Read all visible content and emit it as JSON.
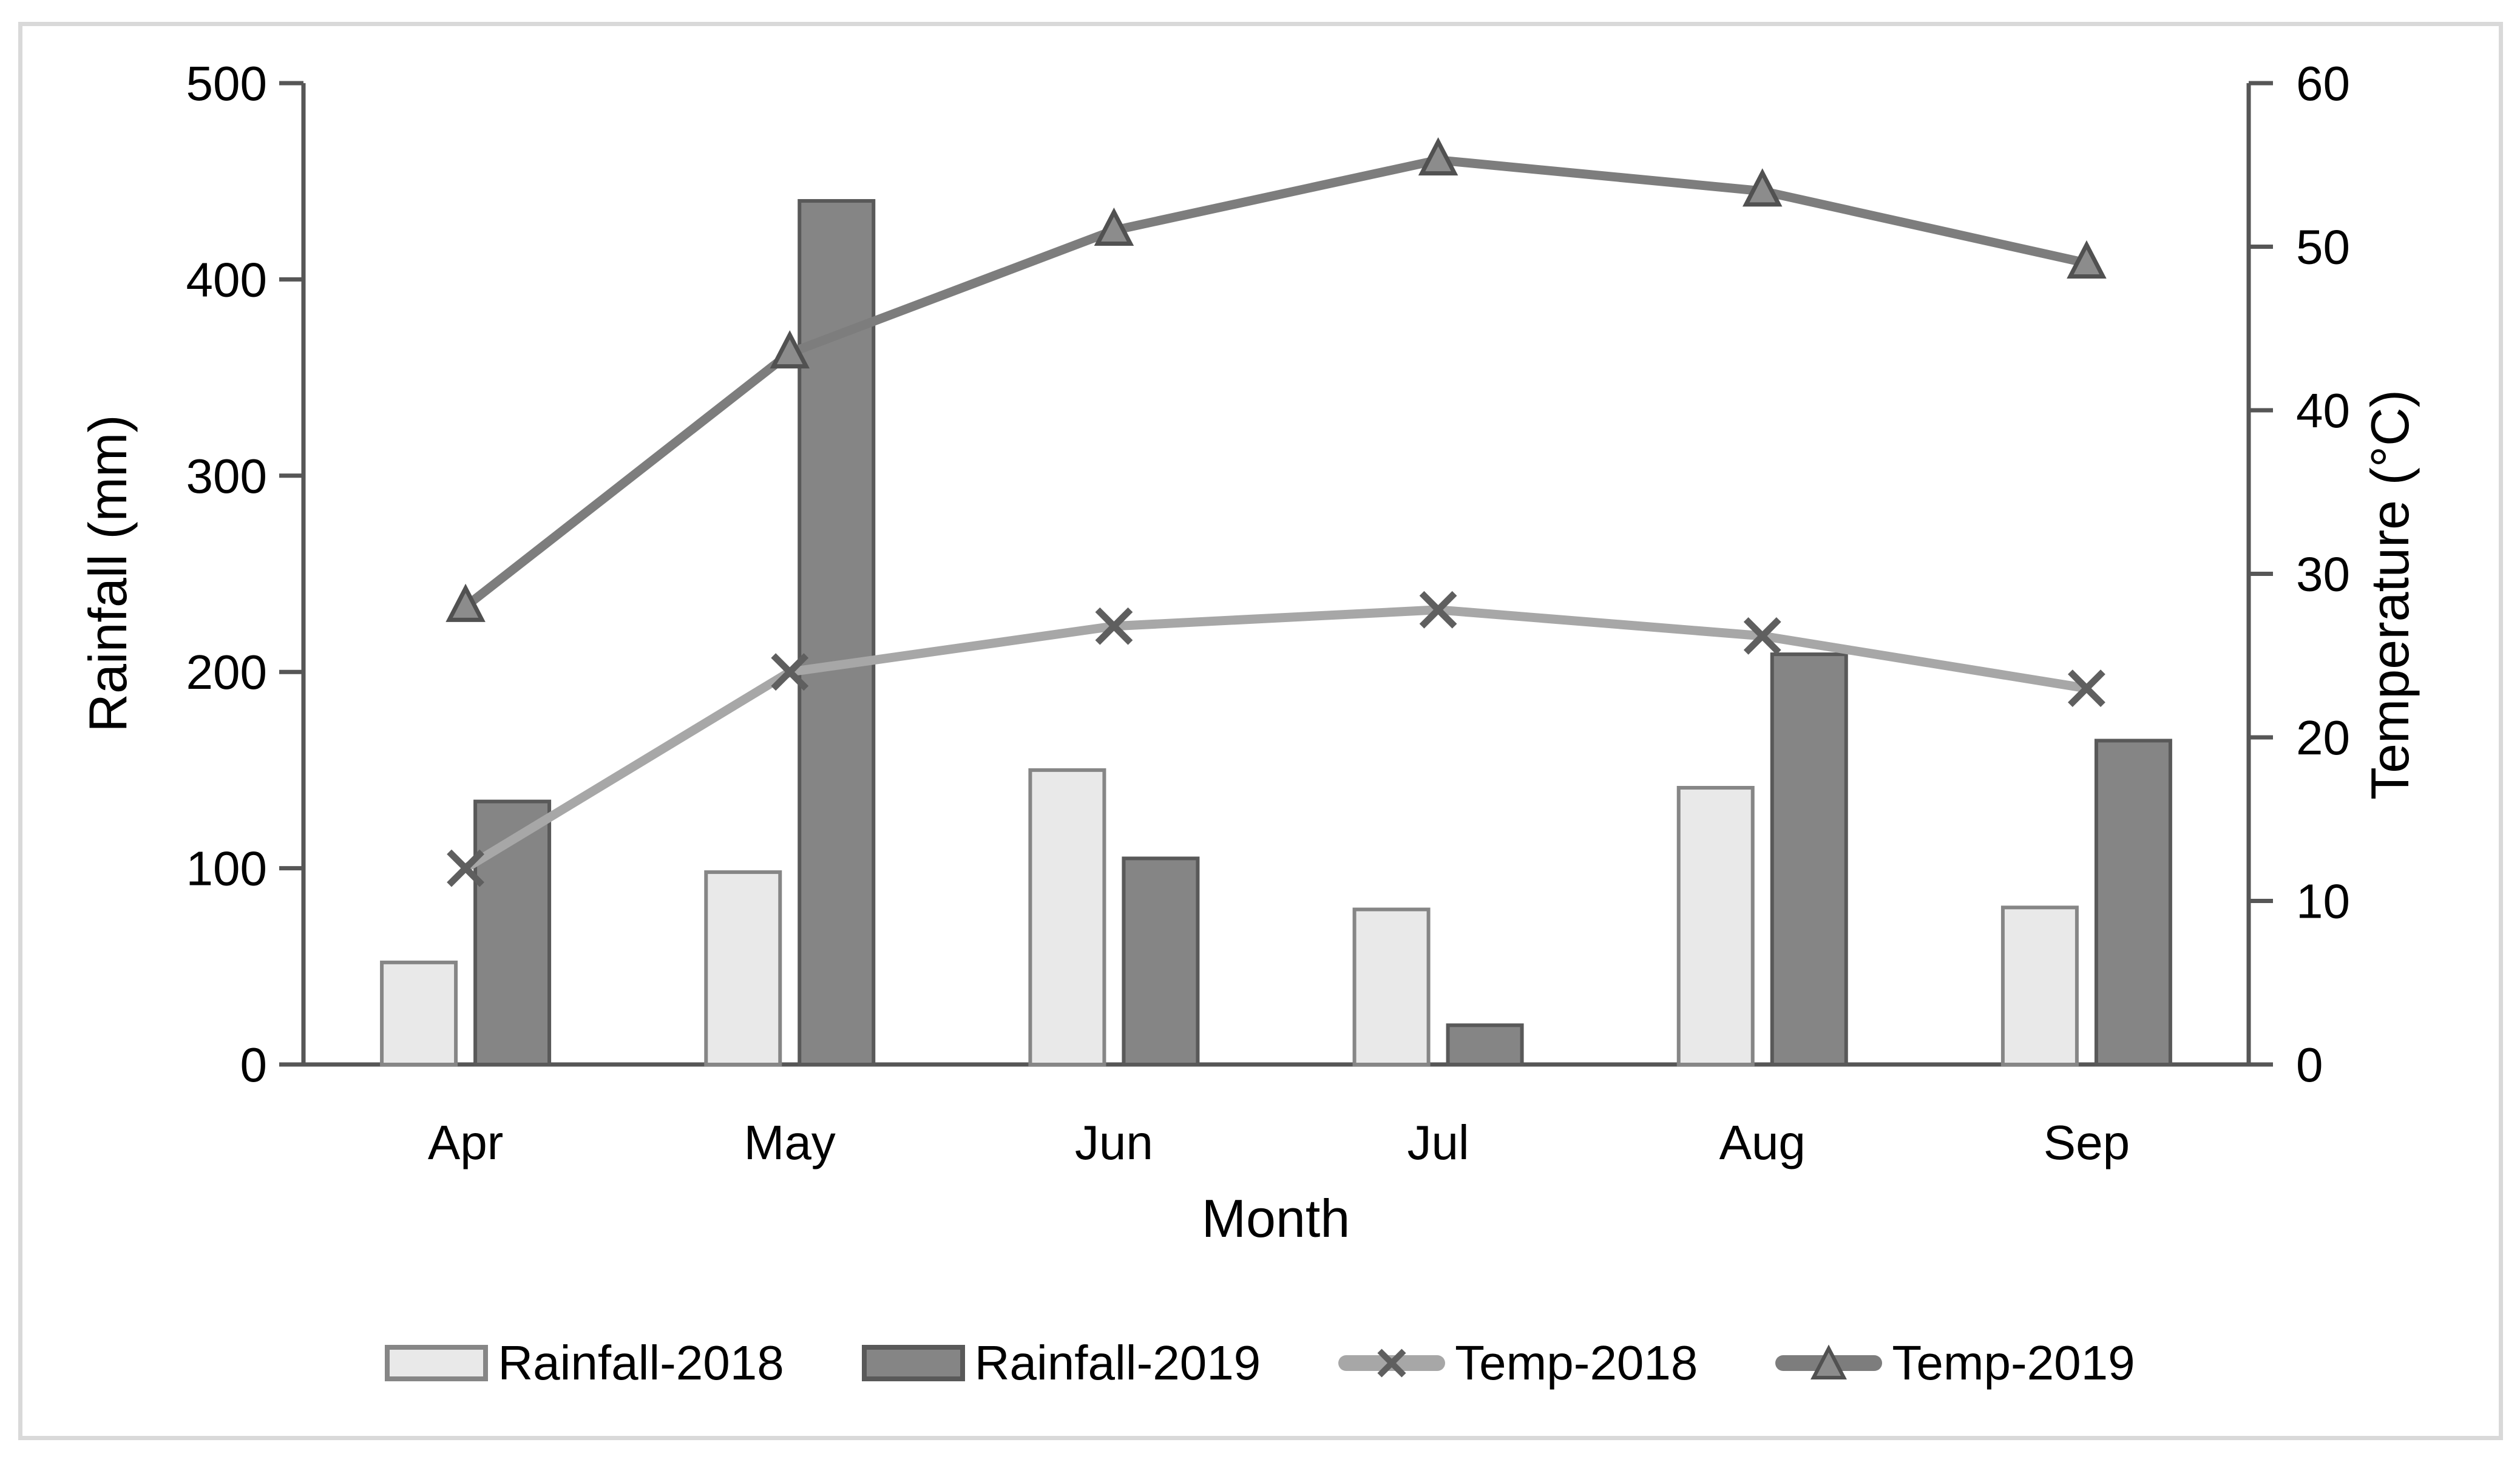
{
  "chart_data": {
    "type": "combo-bar-line",
    "categories": [
      "Apr",
      "May",
      "Jun",
      "Jul",
      "Aug",
      "Sep"
    ],
    "series": [
      {
        "name": "Rainfall-2018",
        "type": "bar",
        "axis": "left",
        "fill": "#e9e9e9",
        "border": "#868686",
        "values": [
          52,
          98,
          150,
          79,
          141,
          80
        ]
      },
      {
        "name": "Rainfall-2019",
        "type": "bar",
        "axis": "left",
        "fill": "#858585",
        "border": "#595959",
        "values": [
          134,
          440,
          105,
          20,
          209,
          165
        ]
      },
      {
        "name": "Temp-2018",
        "type": "line",
        "axis": "right",
        "color": "#a7a7a7",
        "marker": "x",
        "marker_color": "#5f5f5f",
        "values": [
          12,
          24,
          26.8,
          27.8,
          26.2,
          23
        ]
      },
      {
        "name": "Temp-2019",
        "type": "line",
        "axis": "right",
        "color": "#7d7d7d",
        "marker": "triangle",
        "marker_fill": "#8c8c8c",
        "marker_border": "#515151",
        "values": [
          28,
          43.5,
          51,
          55.3,
          53.4,
          49
        ]
      }
    ],
    "y_left": {
      "label": "Rainfall (mm)",
      "min": 0,
      "max": 500,
      "step": 100,
      "ticks": [
        0,
        100,
        200,
        300,
        400,
        500
      ]
    },
    "y_right": {
      "label": "Temperature (°C)",
      "min": 0,
      "max": 60,
      "step": 10,
      "ticks": [
        0,
        10,
        20,
        30,
        40,
        50,
        60
      ]
    },
    "x_axis": {
      "label": "Month"
    },
    "legend_position": "bottom",
    "grid": false
  },
  "colors": {
    "axis": "#565656",
    "text": "#000000",
    "figure_border": "#d9d9d9",
    "background": "#ffffff"
  }
}
